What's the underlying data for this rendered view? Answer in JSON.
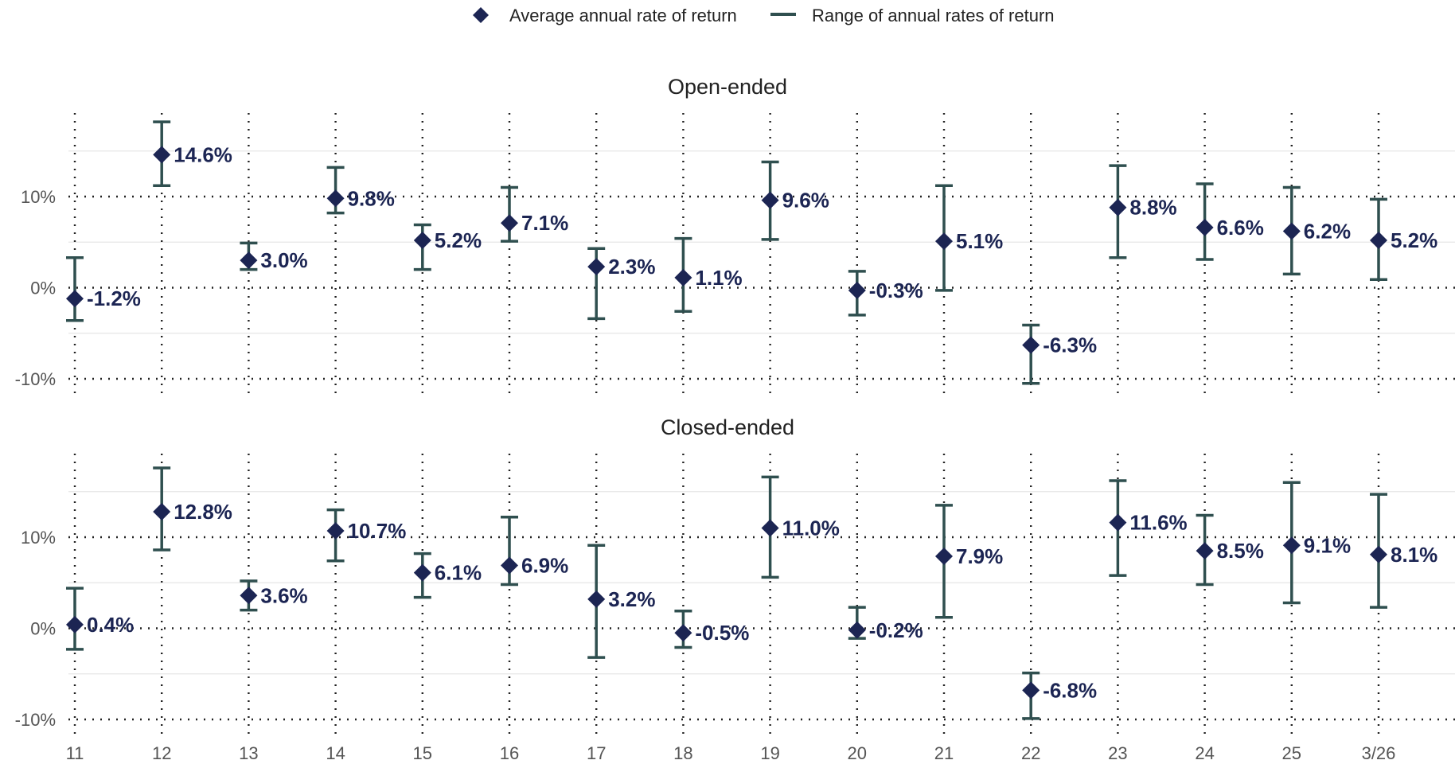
{
  "colors": {
    "marker": "#1c2553",
    "range": "#2f4f4f",
    "grid_minor": "#e6e6e6",
    "grid_major": "#222222",
    "label": "#1c2553"
  },
  "legend": {
    "avg_label": "Average annual rate of return",
    "range_label": "Range of annual rates of return"
  },
  "chart_data": [
    {
      "type": "errorbar-scatter",
      "title": "Open-ended",
      "categories": [
        "11",
        "12",
        "13",
        "14",
        "15",
        "16",
        "17",
        "18",
        "19",
        "20",
        "21",
        "22",
        "23",
        "24",
        "25",
        "3/26"
      ],
      "y_ticks": [
        "10%",
        "0%",
        "-10%"
      ],
      "y_tick_values": [
        10,
        0,
        -10
      ],
      "ylim": [
        -12,
        20
      ],
      "avg": [
        -1.2,
        14.6,
        3.0,
        9.8,
        5.2,
        7.1,
        2.3,
        1.1,
        9.6,
        -0.3,
        5.1,
        -6.3,
        8.8,
        6.6,
        6.2,
        5.2
      ],
      "labels": [
        "-1.2%",
        "14.6%",
        "3.0%",
        "9.8%",
        "5.2%",
        "7.1%",
        "2.3%",
        "1.1%",
        "9.6%",
        "-0.3%",
        "5.1%",
        "-6.3%",
        "8.8%",
        "6.6%",
        "6.2%",
        "5.2%"
      ],
      "range_low": [
        -3.6,
        11.2,
        2.0,
        8.2,
        2.0,
        5.1,
        -3.4,
        -2.6,
        5.3,
        -3.0,
        -0.3,
        -10.5,
        3.3,
        3.1,
        1.5,
        0.9
      ],
      "range_high": [
        3.3,
        18.2,
        4.9,
        13.2,
        6.9,
        11.0,
        4.3,
        5.4,
        13.8,
        1.8,
        11.2,
        -4.1,
        13.4,
        11.4,
        11.0,
        9.7
      ]
    },
    {
      "type": "errorbar-scatter",
      "title": "Closed-ended",
      "categories": [
        "11",
        "12",
        "13",
        "14",
        "15",
        "16",
        "17",
        "18",
        "19",
        "20",
        "21",
        "22",
        "23",
        "24",
        "25",
        "3/26"
      ],
      "y_ticks": [
        "10%",
        "0%",
        "-10%"
      ],
      "y_tick_values": [
        10,
        0,
        -10
      ],
      "ylim": [
        -12,
        20
      ],
      "avg": [
        0.4,
        12.8,
        3.6,
        10.7,
        6.1,
        6.9,
        3.2,
        -0.5,
        11.0,
        -0.2,
        7.9,
        -6.8,
        11.6,
        8.5,
        9.1,
        8.1
      ],
      "labels": [
        "0.4%",
        "12.8%",
        "3.6%",
        "10.7%",
        "6.1%",
        "6.9%",
        "3.2%",
        "-0.5%",
        "11.0%",
        "-0.2%",
        "7.9%",
        "-6.8%",
        "11.6%",
        "8.5%",
        "9.1%",
        "8.1%"
      ],
      "range_low": [
        -2.3,
        8.6,
        2.0,
        7.4,
        3.4,
        4.8,
        -3.2,
        -2.1,
        5.6,
        -1.1,
        1.2,
        -9.9,
        5.8,
        4.8,
        2.8,
        2.3
      ],
      "range_high": [
        4.4,
        17.6,
        5.2,
        13.0,
        8.2,
        12.2,
        9.1,
        1.9,
        16.6,
        2.3,
        13.5,
        -4.9,
        16.2,
        12.4,
        16.0,
        14.7
      ]
    }
  ]
}
